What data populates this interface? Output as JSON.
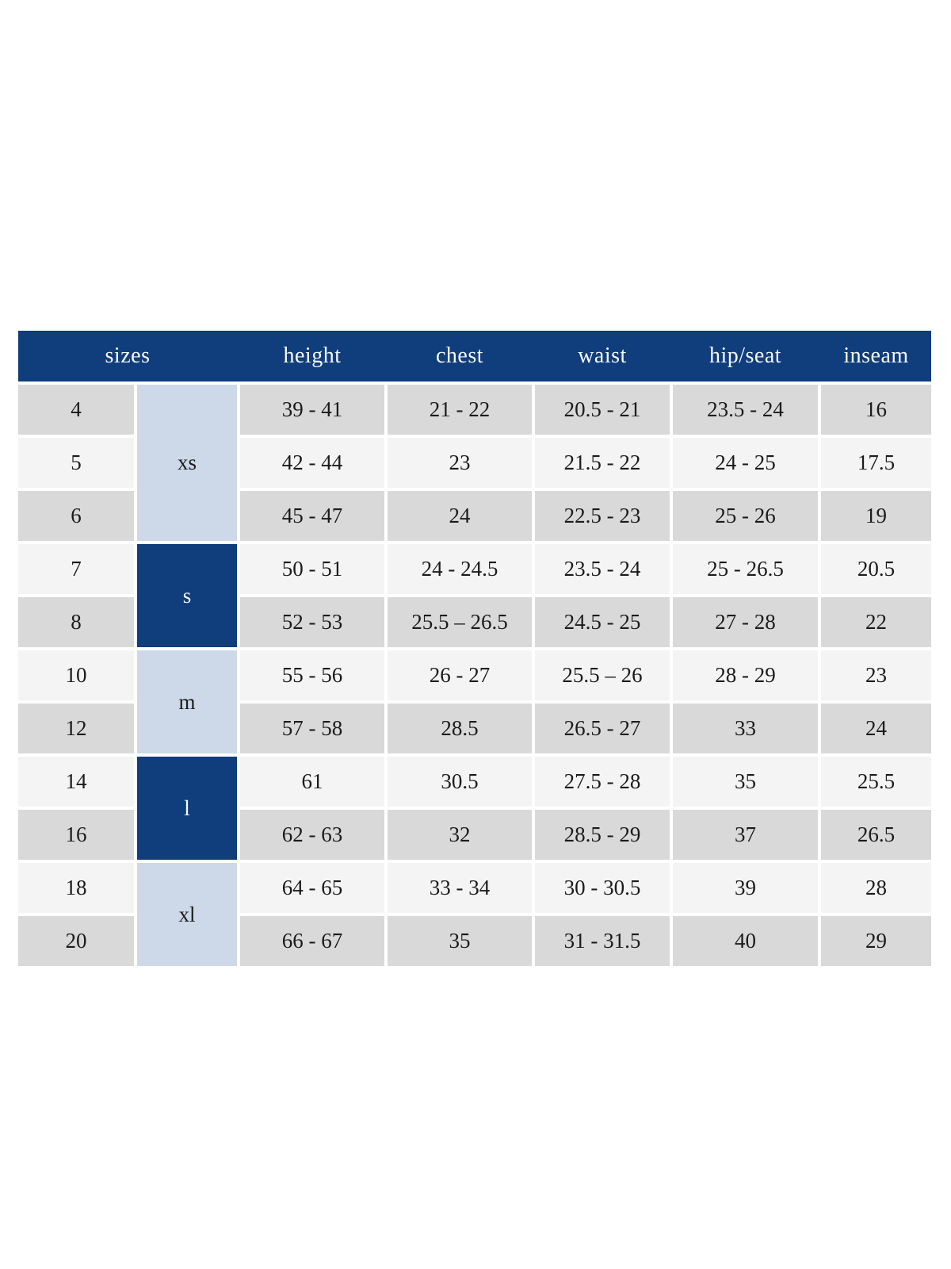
{
  "chart_data": {
    "type": "table",
    "headers": {
      "sizes": "sizes",
      "height": "height",
      "chest": "chest",
      "waist": "waist",
      "hip_seat": "hip/seat",
      "inseam": "inseam"
    },
    "groups": [
      {
        "label": "xs",
        "sizes": [
          "4",
          "5",
          "6"
        ]
      },
      {
        "label": "s",
        "sizes": [
          "7",
          "8"
        ]
      },
      {
        "label": "m",
        "sizes": [
          "10",
          "12"
        ]
      },
      {
        "label": "l",
        "sizes": [
          "14",
          "16"
        ]
      },
      {
        "label": "xl",
        "sizes": [
          "18",
          "20"
        ]
      }
    ],
    "rows": [
      {
        "size": "4",
        "height": "39 - 41",
        "chest": "21 - 22",
        "waist": "20.5 - 21",
        "hip_seat": "23.5 - 24",
        "inseam": "16"
      },
      {
        "size": "5",
        "height": "42 - 44",
        "chest": "23",
        "waist": "21.5 - 22",
        "hip_seat": "24 - 25",
        "inseam": "17.5"
      },
      {
        "size": "6",
        "height": "45 - 47",
        "chest": "24",
        "waist": "22.5 - 23",
        "hip_seat": "25 - 26",
        "inseam": "19"
      },
      {
        "size": "7",
        "height": "50 - 51",
        "chest": "24 - 24.5",
        "waist": "23.5 - 24",
        "hip_seat": "25 - 26.5",
        "inseam": "20.5"
      },
      {
        "size": "8",
        "height": "52 - 53",
        "chest": "25.5 – 26.5",
        "waist": "24.5 - 25",
        "hip_seat": "27 - 28",
        "inseam": "22"
      },
      {
        "size": "10",
        "height": "55 - 56",
        "chest": "26 - 27",
        "waist": "25.5 – 26",
        "hip_seat": "28 - 29",
        "inseam": "23"
      },
      {
        "size": "12",
        "height": "57 - 58",
        "chest": "28.5",
        "waist": "26.5 - 27",
        "hip_seat": "33",
        "inseam": "24"
      },
      {
        "size": "14",
        "height": "61",
        "chest": "30.5",
        "waist": "27.5 - 28",
        "hip_seat": "35",
        "inseam": "25.5"
      },
      {
        "size": "16",
        "height": "62 - 63",
        "chest": "32",
        "waist": "28.5 - 29",
        "hip_seat": "37",
        "inseam": "26.5"
      },
      {
        "size": "18",
        "height": "64 - 65",
        "chest": "33 - 34",
        "waist": "30 - 30.5",
        "hip_seat": "39",
        "inseam": "28"
      },
      {
        "size": "20",
        "height": "66 - 67",
        "chest": "35",
        "waist": "31 - 31.5",
        "hip_seat": "40",
        "inseam": "29"
      }
    ]
  },
  "colors": {
    "header_bg": "#103d7c",
    "header_text": "#f7fafd",
    "group_dark": "#103d7c",
    "group_light": "#cdd9e9",
    "row_gray": "#d9d9d9",
    "row_light": "#f4f4f4",
    "body_text": "#1b1b1b"
  }
}
